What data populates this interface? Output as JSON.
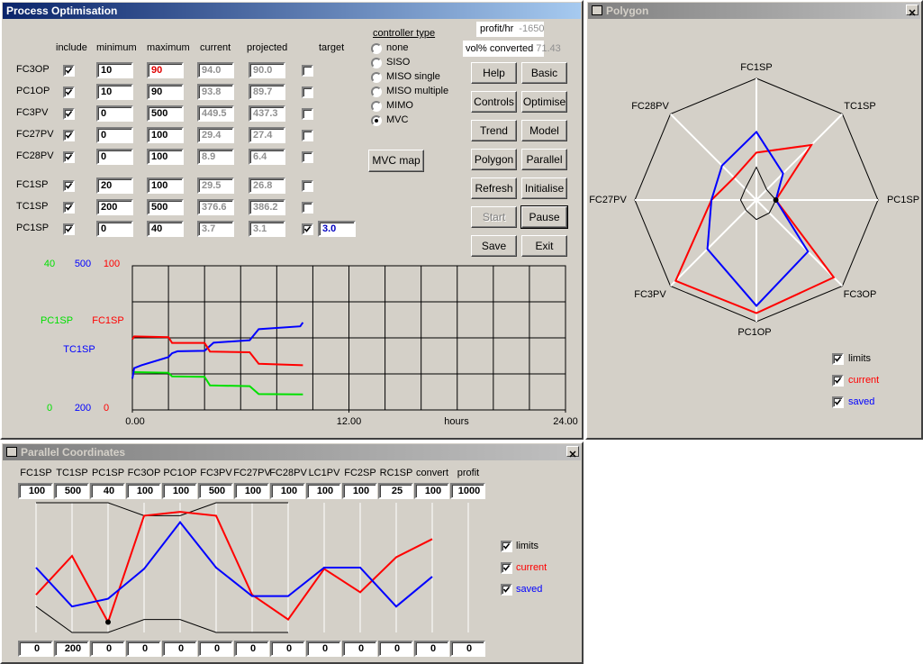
{
  "optimisation": {
    "title": "Process Optimisation",
    "columns": [
      "include",
      "minimum",
      "maximum",
      "current",
      "projected",
      "target"
    ],
    "rows": [
      {
        "name": "FC3OP",
        "include": true,
        "minimum": "10",
        "maximum": "90",
        "maximum_color": "#e00000",
        "current": "94.0",
        "projected": "90.0",
        "target_on": false
      },
      {
        "name": "PC1OP",
        "include": true,
        "minimum": "10",
        "maximum": "90",
        "current": "93.8",
        "projected": "89.7",
        "target_on": false
      },
      {
        "name": "FC3PV",
        "include": true,
        "minimum": "0",
        "maximum": "500",
        "current": "449.5",
        "projected": "437.3",
        "target_on": false
      },
      {
        "name": "FC27PV",
        "include": true,
        "minimum": "0",
        "maximum": "100",
        "current": "29.4",
        "projected": "27.4",
        "target_on": false
      },
      {
        "name": "FC28PV",
        "include": true,
        "minimum": "0",
        "maximum": "100",
        "current": "8.9",
        "projected": "6.4",
        "target_on": false
      },
      {
        "name": "FC1SP",
        "include": true,
        "minimum": "20",
        "maximum": "100",
        "current": "29.5",
        "projected": "26.8",
        "target_on": false
      },
      {
        "name": "TC1SP",
        "include": true,
        "minimum": "200",
        "maximum": "500",
        "current": "376.6",
        "projected": "386.2",
        "target_on": false
      },
      {
        "name": "PC1SP",
        "include": true,
        "minimum": "0",
        "maximum": "40",
        "current": "3.7",
        "projected": "3.1",
        "target_on": true,
        "target": "3.0"
      }
    ],
    "controller": {
      "label": "controller type",
      "options": [
        "none",
        "SISO",
        "MISO single",
        "MISO multiple",
        "MIMO",
        "MVC"
      ],
      "selected": 5
    },
    "mvc_map": "MVC map",
    "profit": {
      "label": "profit/hr",
      "value": "-1650"
    },
    "converted": {
      "label": "vol% converted",
      "value": "71.43"
    },
    "buttons": [
      {
        "label": "Help",
        "enabled": true
      },
      {
        "label": "Basic",
        "enabled": true
      },
      {
        "label": "Controls",
        "enabled": true
      },
      {
        "label": "Optimise",
        "enabled": true
      },
      {
        "label": "Trend",
        "enabled": true
      },
      {
        "label": "Model",
        "enabled": true
      },
      {
        "label": "Polygon",
        "enabled": true
      },
      {
        "label": "Parallel",
        "enabled": true
      },
      {
        "label": "Refresh",
        "enabled": true
      },
      {
        "label": "Initialise",
        "enabled": true
      },
      {
        "label": "Start",
        "enabled": false
      },
      {
        "label": "Pause",
        "enabled": true,
        "focused": true
      },
      {
        "label": "Save",
        "enabled": true
      },
      {
        "label": "Exit",
        "enabled": true
      }
    ]
  },
  "trend": {
    "xlabel": "hours",
    "xlim": [
      0,
      24
    ],
    "xticks": [
      {
        "value": 0,
        "label": "0.00"
      },
      {
        "value": 12,
        "label": "12.00"
      },
      {
        "value": 24,
        "label": "24.00"
      }
    ],
    "series": [
      {
        "name": "PC1SP",
        "color": "#00e000",
        "ylim": [
          0,
          40
        ],
        "x": [
          0,
          2,
          2.2,
          4,
          4.3,
          6.5,
          7,
          9.45
        ],
        "values": [
          10.5,
          10.3,
          9.3,
          9.2,
          6.8,
          6.6,
          4.4,
          4.3
        ]
      },
      {
        "name": "TC1SP",
        "color": "#0000ff",
        "ylim": [
          200,
          500
        ],
        "x": [
          0,
          0.1,
          0.5,
          2,
          2.2,
          2.5,
          4,
          4.5,
          6.5,
          7,
          9.3,
          9.45
        ],
        "values": [
          265,
          287,
          293,
          310,
          318,
          322,
          323,
          340,
          345,
          368,
          374,
          382
        ]
      },
      {
        "name": "FC1SP",
        "color": "#ff0000",
        "ylim": [
          0,
          100
        ],
        "x": [
          0,
          0.1,
          2,
          2.2,
          4,
          4.3,
          6.5,
          7,
          9.45
        ],
        "values": [
          49,
          51,
          50.5,
          46.5,
          46.5,
          40.5,
          40,
          32,
          31
        ]
      }
    ]
  },
  "polygon": {
    "title": "Polygon",
    "axes": [
      "FC1SP",
      "TC1SP",
      "PC1SP",
      "FC3OP",
      "PC1OP",
      "FC3PV",
      "FC27PV",
      "FC28PV"
    ],
    "series": [
      {
        "name": "limits",
        "color": "#000000",
        "values": [
          27,
          12,
          16,
          15,
          16,
          12,
          13,
          13
        ]
      },
      {
        "name": "current",
        "color": "#ff0000",
        "values": [
          39,
          64,
          16,
          90,
          93,
          94,
          37,
          26
        ]
      },
      {
        "name": "saved",
        "color": "#0000ff",
        "values": [
          56,
          31,
          16,
          60,
          87,
          57,
          37,
          40
        ]
      }
    ]
  },
  "parallel": {
    "title": "Parallel Coordinates",
    "axes": [
      {
        "name": "FC1SP",
        "max": 100,
        "min": 0
      },
      {
        "name": "TC1SP",
        "max": 500,
        "min": 200
      },
      {
        "name": "PC1SP",
        "max": 40,
        "min": 0
      },
      {
        "name": "FC3OP",
        "max": 100,
        "min": 0
      },
      {
        "name": "PC1OP",
        "max": 100,
        "min": 0
      },
      {
        "name": "FC3PV",
        "max": 500,
        "min": 0
      },
      {
        "name": "FC27PV",
        "max": 100,
        "min": 0
      },
      {
        "name": "FC28PV",
        "max": 100,
        "min": 0
      },
      {
        "name": "LC1PV",
        "max": 100,
        "min": 0
      },
      {
        "name": "FC2SP",
        "max": 100,
        "min": 0
      },
      {
        "name": "RC1SP",
        "max": 25,
        "min": 0
      },
      {
        "name": "convert",
        "max": 100,
        "min": 0
      },
      {
        "name": "profit",
        "max": 1000,
        "min": 0
      }
    ],
    "limits": {
      "name": "limits",
      "color": "#000000",
      "upper": [
        100,
        100,
        100,
        90,
        90,
        100,
        100,
        100,
        null,
        null,
        null,
        null,
        null
      ],
      "lower": [
        20,
        0,
        0,
        10,
        10,
        0,
        0,
        0,
        null,
        null,
        null,
        null,
        null
      ]
    },
    "series": [
      {
        "name": "current",
        "color": "#ff0000",
        "values": [
          29,
          59,
          8,
          90,
          93,
          90,
          29,
          10,
          49,
          31,
          58,
          72,
          null
        ]
      },
      {
        "name": "saved",
        "color": "#0000ff",
        "values": [
          50,
          20,
          26,
          49,
          85,
          50,
          28,
          28,
          50,
          50,
          20,
          43,
          null
        ]
      }
    ]
  }
}
